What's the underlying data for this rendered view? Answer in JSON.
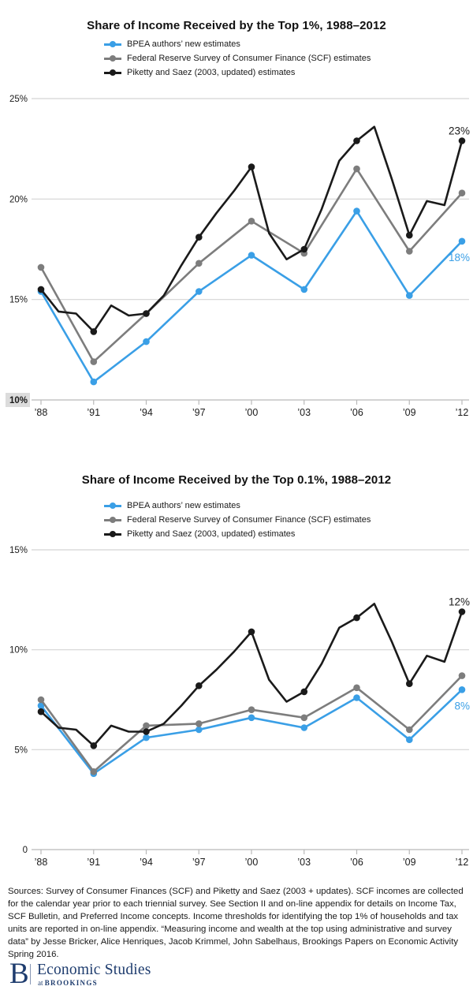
{
  "page": {
    "background": "#ffffff"
  },
  "colors": {
    "bpea_blue": "#3a9fe6",
    "scf_gray": "#7d7d7d",
    "piketty_black": "#1a1a1a",
    "gridline": "#d4d4d4",
    "axis_line": "#b9b9b9",
    "ylabel_highlight_bg": "#dcdcdc",
    "brookings_navy": "#1e3c6e"
  },
  "chart_data": [
    {
      "type": "line",
      "title": "Share of Income Received by the Top 1%, 1988–2012",
      "grid": "horizontal",
      "legend_position": "top-left",
      "xlabel": "",
      "ylabel": "",
      "ylim": [
        10,
        25
      ],
      "x_ticks": [
        {
          "year": 1988,
          "label": "’88"
        },
        {
          "year": 1991,
          "label": "’91"
        },
        {
          "year": 1994,
          "label": "’94"
        },
        {
          "year": 1997,
          "label": "’97"
        },
        {
          "year": 2000,
          "label": "’00"
        },
        {
          "year": 2003,
          "label": "’03"
        },
        {
          "year": 2006,
          "label": "’06"
        },
        {
          "year": 2009,
          "label": "’09"
        },
        {
          "year": 2012,
          "label": "’12"
        }
      ],
      "y_ticks": [
        {
          "value": 25,
          "label": "25%"
        },
        {
          "value": 20,
          "label": "20%"
        },
        {
          "value": 15,
          "label": "15%"
        },
        {
          "value": 10,
          "label": "10%",
          "highlight": true,
          "axis": true
        }
      ],
      "series": [
        {
          "name": "BPEA authors’ new estimates",
          "color": "#3a9fe6",
          "years": [
            1988,
            1991,
            1994,
            1997,
            2000,
            2003,
            2006,
            2009,
            2012
          ],
          "values": [
            15.4,
            10.9,
            12.9,
            15.4,
            17.2,
            15.5,
            19.4,
            15.2,
            17.9
          ],
          "end_label": {
            "text": "18%",
            "position": "below"
          }
        },
        {
          "name": "Federal Reserve Survey of Consumer Finance (SCF) estimates",
          "color": "#7d7d7d",
          "years": [
            1988,
            1991,
            1994,
            1997,
            2000,
            2003,
            2006,
            2009,
            2012
          ],
          "values": [
            16.6,
            11.9,
            14.3,
            16.8,
            18.9,
            17.3,
            21.5,
            17.4,
            20.3
          ]
        },
        {
          "name": "Piketty and Saez (2003, updated) estimates",
          "color": "#1a1a1a",
          "years": [
            1988,
            1989,
            1990,
            1991,
            1992,
            1993,
            1994,
            1995,
            1996,
            1997,
            1998,
            1999,
            2000,
            2001,
            2002,
            2003,
            2004,
            2005,
            2006,
            2007,
            2008,
            2009,
            2010,
            2011,
            2012
          ],
          "values": [
            15.5,
            14.4,
            14.3,
            13.4,
            14.7,
            14.2,
            14.3,
            15.2,
            16.7,
            18.1,
            19.3,
            20.4,
            21.6,
            18.3,
            17.0,
            17.5,
            19.5,
            21.9,
            22.9,
            23.6,
            21.0,
            18.2,
            19.9,
            19.7,
            22.9
          ],
          "marker_years": [
            1988,
            1991,
            1994,
            1997,
            2000,
            2003,
            2006,
            2009,
            2012
          ],
          "end_label": {
            "text": "23%",
            "position": "above"
          }
        }
      ]
    },
    {
      "type": "line",
      "title": "Share of Income Received by the Top 0.1%, 1988–2012",
      "grid": "horizontal",
      "legend_position": "top-left",
      "xlabel": "",
      "ylabel": "",
      "ylim": [
        0,
        15
      ],
      "x_ticks": [
        {
          "year": 1988,
          "label": "’88"
        },
        {
          "year": 1991,
          "label": "’91"
        },
        {
          "year": 1994,
          "label": "’94"
        },
        {
          "year": 1997,
          "label": "’97"
        },
        {
          "year": 2000,
          "label": "’00"
        },
        {
          "year": 2003,
          "label": "’03"
        },
        {
          "year": 2006,
          "label": "’06"
        },
        {
          "year": 2009,
          "label": "’09"
        },
        {
          "year": 2012,
          "label": "’12"
        }
      ],
      "y_ticks": [
        {
          "value": 15,
          "label": "15%"
        },
        {
          "value": 10,
          "label": "10%"
        },
        {
          "value": 5,
          "label": "5%"
        },
        {
          "value": 0,
          "label": "0",
          "axis": true
        }
      ],
      "series": [
        {
          "name": "BPEA authors’ new estimates",
          "color": "#3a9fe6",
          "years": [
            1988,
            1991,
            1994,
            1997,
            2000,
            2003,
            2006,
            2009,
            2012
          ],
          "values": [
            7.2,
            3.8,
            5.6,
            6.0,
            6.6,
            6.1,
            7.6,
            5.5,
            8.0
          ],
          "end_label": {
            "text": "8%",
            "position": "below"
          }
        },
        {
          "name": "Federal Reserve Survey of Consumer Finance (SCF) estimates",
          "color": "#7d7d7d",
          "years": [
            1988,
            1991,
            1994,
            1997,
            2000,
            2003,
            2006,
            2009,
            2012
          ],
          "values": [
            7.5,
            3.9,
            6.2,
            6.3,
            7.0,
            6.6,
            8.1,
            6.0,
            8.7
          ]
        },
        {
          "name": "Piketty and Saez (2003, updated) estimates",
          "color": "#1a1a1a",
          "years": [
            1988,
            1989,
            1990,
            1991,
            1992,
            1993,
            1994,
            1995,
            1996,
            1997,
            1998,
            1999,
            2000,
            2001,
            2002,
            2003,
            2004,
            2005,
            2006,
            2007,
            2008,
            2009,
            2010,
            2011,
            2012
          ],
          "values": [
            6.9,
            6.1,
            6.0,
            5.2,
            6.2,
            5.9,
            5.9,
            6.3,
            7.2,
            8.2,
            9.0,
            9.9,
            10.9,
            8.5,
            7.4,
            7.9,
            9.3,
            11.1,
            11.6,
            12.3,
            10.4,
            8.3,
            9.7,
            9.4,
            11.9
          ],
          "marker_years": [
            1988,
            1991,
            1994,
            1997,
            2000,
            2003,
            2006,
            2009,
            2012
          ],
          "end_label": {
            "text": "12%",
            "position": "above"
          }
        }
      ]
    }
  ],
  "sources": {
    "text": "Sources: Survey of Consumer Finances (SCF) and Piketty and Saez (2003 + updates). SCF incomes are collected for the calendar year prior to each triennial survey.  See Section II and on-line appendix for details on Income Tax, SCF Bulletin, and Preferred Income concepts. Income thresholds for identifying the top 1% of households and tax units are reported in on-line appendix. “Measuring income and wealth at the top using administrative and survey data” by Jesse Bricker, Alice Henriques, Jacob Krimmel, John Sabelhaus, Brookings Papers on Economic Activity Spring 2016."
  },
  "footer": {
    "logo_letter": "B",
    "title": "Economic Studies",
    "subtitle_prefix": "at",
    "subtitle": "BROOKINGS"
  }
}
